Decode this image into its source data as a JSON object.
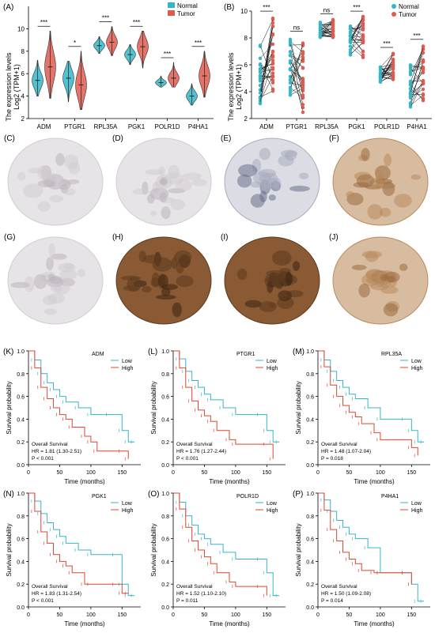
{
  "panel_A": {
    "label": "(A)",
    "ylabel": "The expression levels",
    "ylabel2": "Log2 (TPM+1)",
    "legend": [
      {
        "name": "Normal",
        "color": "#35b6c7"
      },
      {
        "name": "Tumor",
        "color": "#e05a4f"
      }
    ]
  },
  "panel_B": {
    "label": "(B)",
    "ylabel": "The expression levels",
    "ylabel2": "Log2 (TPM+1)",
    "legend": [
      {
        "name": "Normal",
        "color": "#35b6c7"
      },
      {
        "name": "Tumor",
        "color": "#e05a4f"
      }
    ]
  },
  "ihc_panels": [
    {
      "label": "(C)",
      "tone": "light-gray"
    },
    {
      "label": "(D)",
      "tone": "light-gray"
    },
    {
      "label": "(E)",
      "tone": "blue-gray"
    },
    {
      "label": "(F)",
      "tone": "brown"
    },
    {
      "label": "(G)",
      "tone": "light-gray"
    },
    {
      "label": "(H)",
      "tone": "dark-brown"
    },
    {
      "label": "(I)",
      "tone": "dark-brown"
    },
    {
      "label": "(J)",
      "tone": "brown"
    }
  ],
  "km_panels": [
    {
      "label": "(K)",
      "gene": "ADM",
      "title": "Overall Survival",
      "hr": "HR = 1.81 (1.30-2.51)",
      "p": "P < 0.001"
    },
    {
      "label": "(L)",
      "gene": "PTGR1",
      "title": "Overall Survival",
      "hr": "HR = 1.76 (1.27-2.44)",
      "p": "P < 0.001"
    },
    {
      "label": "(M)",
      "gene": "RPL35A",
      "title": "Overall Survival",
      "hr": "HR = 1.48 (1.07-2.04)",
      "p": "P = 0.018"
    },
    {
      "label": "(N)",
      "gene": "PGK1",
      "title": "Overall Survival",
      "hr": "HR = 1.83 (1.31-2.54)",
      "p": "P < 0.001"
    },
    {
      "label": "(O)",
      "gene": "POLR1D",
      "title": "Overall Survival",
      "hr": "HR = 1.52 (1.10-2.10)",
      "p": "P = 0.011"
    },
    {
      "label": "(P)",
      "gene": "P4HA1",
      "title": "Overall Survival",
      "hr": "HR = 1.50 (1.09-2.08)",
      "p": "P = 0.014"
    }
  ],
  "km_common": {
    "xlabel": "Time (months)",
    "ylabel": "Survival probability",
    "legend": [
      {
        "name": "Low",
        "color": "#35b6c7"
      },
      {
        "name": "High",
        "color": "#e0452f"
      }
    ]
  },
  "chart_data": [
    {
      "id": "A",
      "type": "violin",
      "categories": [
        "ADM",
        "PTGR1",
        "RPL35A",
        "PGK1",
        "POLR1D",
        "P4HA1"
      ],
      "ylim": [
        2,
        12
      ],
      "yticks": [
        2,
        4,
        6,
        8,
        10
      ],
      "significance": [
        "***",
        "*",
        "***",
        "***",
        "***",
        "***"
      ],
      "series": [
        {
          "name": "Normal",
          "medians": [
            5.4,
            5.6,
            8.5,
            7.7,
            5.2,
            4.0
          ],
          "min": [
            4.0,
            3.5,
            7.8,
            6.8,
            4.8,
            3.2
          ],
          "max": [
            7.2,
            7.1,
            9.3,
            8.6,
            5.8,
            5.1
          ]
        },
        {
          "name": "Tumor",
          "medians": [
            6.6,
            5.0,
            8.8,
            8.4,
            5.6,
            5.8
          ],
          "min": [
            3.8,
            2.8,
            7.6,
            6.5,
            4.8,
            3.9
          ],
          "max": [
            9.8,
            8.0,
            10.2,
            9.8,
            7.0,
            8.0
          ]
        }
      ]
    },
    {
      "id": "B",
      "type": "paired-dot",
      "categories": [
        "ADM",
        "PTGR1",
        "RPL35A",
        "PGK1",
        "POLR1D",
        "P4HA1"
      ],
      "ylim": [
        2,
        10
      ],
      "yticks": [
        2,
        4,
        6,
        8,
        10
      ],
      "significance": [
        "***",
        "ns",
        "ns",
        "***",
        "***",
        "***"
      ],
      "series": [
        {
          "name": "Normal",
          "median": [
            5.8,
            5.7,
            8.6,
            7.8,
            5.2,
            4.2
          ],
          "min": [
            2.6,
            3.6,
            8.0,
            6.6,
            4.6,
            2.6
          ],
          "max": [
            7.8,
            8.2,
            9.4,
            9.0,
            6.0,
            6.2
          ]
        },
        {
          "name": "Tumor",
          "median": [
            6.8,
            5.4,
            8.8,
            8.6,
            5.6,
            5.6
          ],
          "min": [
            3.6,
            2.2,
            8.0,
            6.4,
            4.8,
            3.0
          ],
          "max": [
            9.7,
            7.8,
            9.5,
            9.7,
            7.0,
            7.6
          ]
        }
      ]
    },
    {
      "id": "KM",
      "type": "line",
      "xlim": [
        0,
        180
      ],
      "xticks": [
        0,
        50,
        100,
        150
      ],
      "ylim": [
        0,
        1
      ],
      "yticks": [
        0.0,
        0.2,
        0.4,
        0.6,
        0.8,
        1.0
      ],
      "panels": [
        {
          "gene": "ADM",
          "low": [
            [
              0,
              1
            ],
            [
              10,
              0.92
            ],
            [
              20,
              0.8
            ],
            [
              30,
              0.72
            ],
            [
              40,
              0.66
            ],
            [
              50,
              0.6
            ],
            [
              60,
              0.55
            ],
            [
              80,
              0.5
            ],
            [
              100,
              0.44
            ],
            [
              130,
              0.44
            ],
            [
              150,
              0.3
            ],
            [
              160,
              0.2
            ],
            [
              170,
              0.2
            ]
          ],
          "high": [
            [
              0,
              1
            ],
            [
              10,
              0.85
            ],
            [
              20,
              0.68
            ],
            [
              30,
              0.58
            ],
            [
              40,
              0.5
            ],
            [
              50,
              0.44
            ],
            [
              60,
              0.4
            ],
            [
              70,
              0.33
            ],
            [
              90,
              0.25
            ],
            [
              100,
              0.2
            ],
            [
              110,
              0.12
            ],
            [
              150,
              0.12
            ],
            [
              160,
              0.05
            ]
          ]
        },
        {
          "gene": "PTGR1",
          "low": [
            [
              0,
              1
            ],
            [
              10,
              0.93
            ],
            [
              20,
              0.82
            ],
            [
              30,
              0.74
            ],
            [
              40,
              0.68
            ],
            [
              50,
              0.62
            ],
            [
              60,
              0.57
            ],
            [
              80,
              0.5
            ],
            [
              100,
              0.44
            ],
            [
              140,
              0.44
            ],
            [
              150,
              0.3
            ],
            [
              160,
              0.2
            ],
            [
              170,
              0.2
            ]
          ],
          "high": [
            [
              0,
              1
            ],
            [
              10,
              0.85
            ],
            [
              20,
              0.68
            ],
            [
              30,
              0.56
            ],
            [
              40,
              0.48
            ],
            [
              50,
              0.43
            ],
            [
              60,
              0.38
            ],
            [
              70,
              0.3
            ],
            [
              90,
              0.22
            ],
            [
              100,
              0.18
            ],
            [
              150,
              0.18
            ],
            [
              160,
              0.05
            ]
          ]
        },
        {
          "gene": "RPL35A",
          "low": [
            [
              0,
              1
            ],
            [
              10,
              0.92
            ],
            [
              20,
              0.82
            ],
            [
              30,
              0.74
            ],
            [
              40,
              0.68
            ],
            [
              50,
              0.62
            ],
            [
              60,
              0.58
            ],
            [
              80,
              0.5
            ],
            [
              100,
              0.4
            ],
            [
              140,
              0.4
            ],
            [
              150,
              0.3
            ],
            [
              160,
              0.2
            ],
            [
              170,
              0.2
            ]
          ],
          "high": [
            [
              0,
              1
            ],
            [
              10,
              0.86
            ],
            [
              20,
              0.7
            ],
            [
              30,
              0.6
            ],
            [
              40,
              0.52
            ],
            [
              50,
              0.46
            ],
            [
              60,
              0.42
            ],
            [
              70,
              0.36
            ],
            [
              90,
              0.28
            ],
            [
              100,
              0.22
            ],
            [
              150,
              0.15
            ],
            [
              160,
              0.08
            ]
          ]
        },
        {
          "gene": "PGK1",
          "low": [
            [
              0,
              1
            ],
            [
              10,
              0.93
            ],
            [
              20,
              0.82
            ],
            [
              30,
              0.74
            ],
            [
              40,
              0.68
            ],
            [
              50,
              0.62
            ],
            [
              60,
              0.56
            ],
            [
              80,
              0.5
            ],
            [
              100,
              0.46
            ],
            [
              140,
              0.46
            ],
            [
              150,
              0.2
            ],
            [
              160,
              0.1
            ],
            [
              170,
              0.1
            ]
          ],
          "high": [
            [
              0,
              1
            ],
            [
              10,
              0.84
            ],
            [
              20,
              0.66
            ],
            [
              30,
              0.56
            ],
            [
              40,
              0.46
            ],
            [
              50,
              0.4
            ],
            [
              60,
              0.36
            ],
            [
              70,
              0.3
            ],
            [
              90,
              0.2
            ],
            [
              100,
              0.2
            ],
            [
              140,
              0.2
            ],
            [
              150,
              0.12
            ],
            [
              160,
              0.12
            ]
          ]
        },
        {
          "gene": "POLR1D",
          "low": [
            [
              0,
              1
            ],
            [
              10,
              0.92
            ],
            [
              20,
              0.8
            ],
            [
              30,
              0.72
            ],
            [
              40,
              0.64
            ],
            [
              50,
              0.6
            ],
            [
              60,
              0.55
            ],
            [
              80,
              0.48
            ],
            [
              100,
              0.42
            ],
            [
              140,
              0.42
            ],
            [
              150,
              0.3
            ],
            [
              160,
              0.1
            ],
            [
              170,
              0.1
            ]
          ],
          "high": [
            [
              0,
              1
            ],
            [
              10,
              0.86
            ],
            [
              20,
              0.7
            ],
            [
              30,
              0.58
            ],
            [
              40,
              0.5
            ],
            [
              50,
              0.44
            ],
            [
              60,
              0.38
            ],
            [
              70,
              0.3
            ],
            [
              90,
              0.22
            ],
            [
              100,
              0.18
            ],
            [
              140,
              0.18
            ],
            [
              150,
              0.1
            ]
          ]
        },
        {
          "gene": "P4HA1",
          "low": [
            [
              0,
              1
            ],
            [
              10,
              0.94
            ],
            [
              20,
              0.84
            ],
            [
              30,
              0.76
            ],
            [
              40,
              0.7
            ],
            [
              50,
              0.64
            ],
            [
              60,
              0.6
            ],
            [
              80,
              0.52
            ],
            [
              100,
              0.3
            ],
            [
              140,
              0.3
            ],
            [
              150,
              0.2
            ],
            [
              160,
              0.05
            ],
            [
              170,
              0.05
            ]
          ],
          "high": [
            [
              0,
              1
            ],
            [
              10,
              0.85
            ],
            [
              20,
              0.68
            ],
            [
              30,
              0.58
            ],
            [
              40,
              0.48
            ],
            [
              50,
              0.42
            ],
            [
              60,
              0.38
            ],
            [
              70,
              0.32
            ],
            [
              90,
              0.3
            ],
            [
              100,
              0.3
            ],
            [
              140,
              0.3
            ],
            [
              150,
              0.2
            ]
          ]
        }
      ]
    }
  ]
}
